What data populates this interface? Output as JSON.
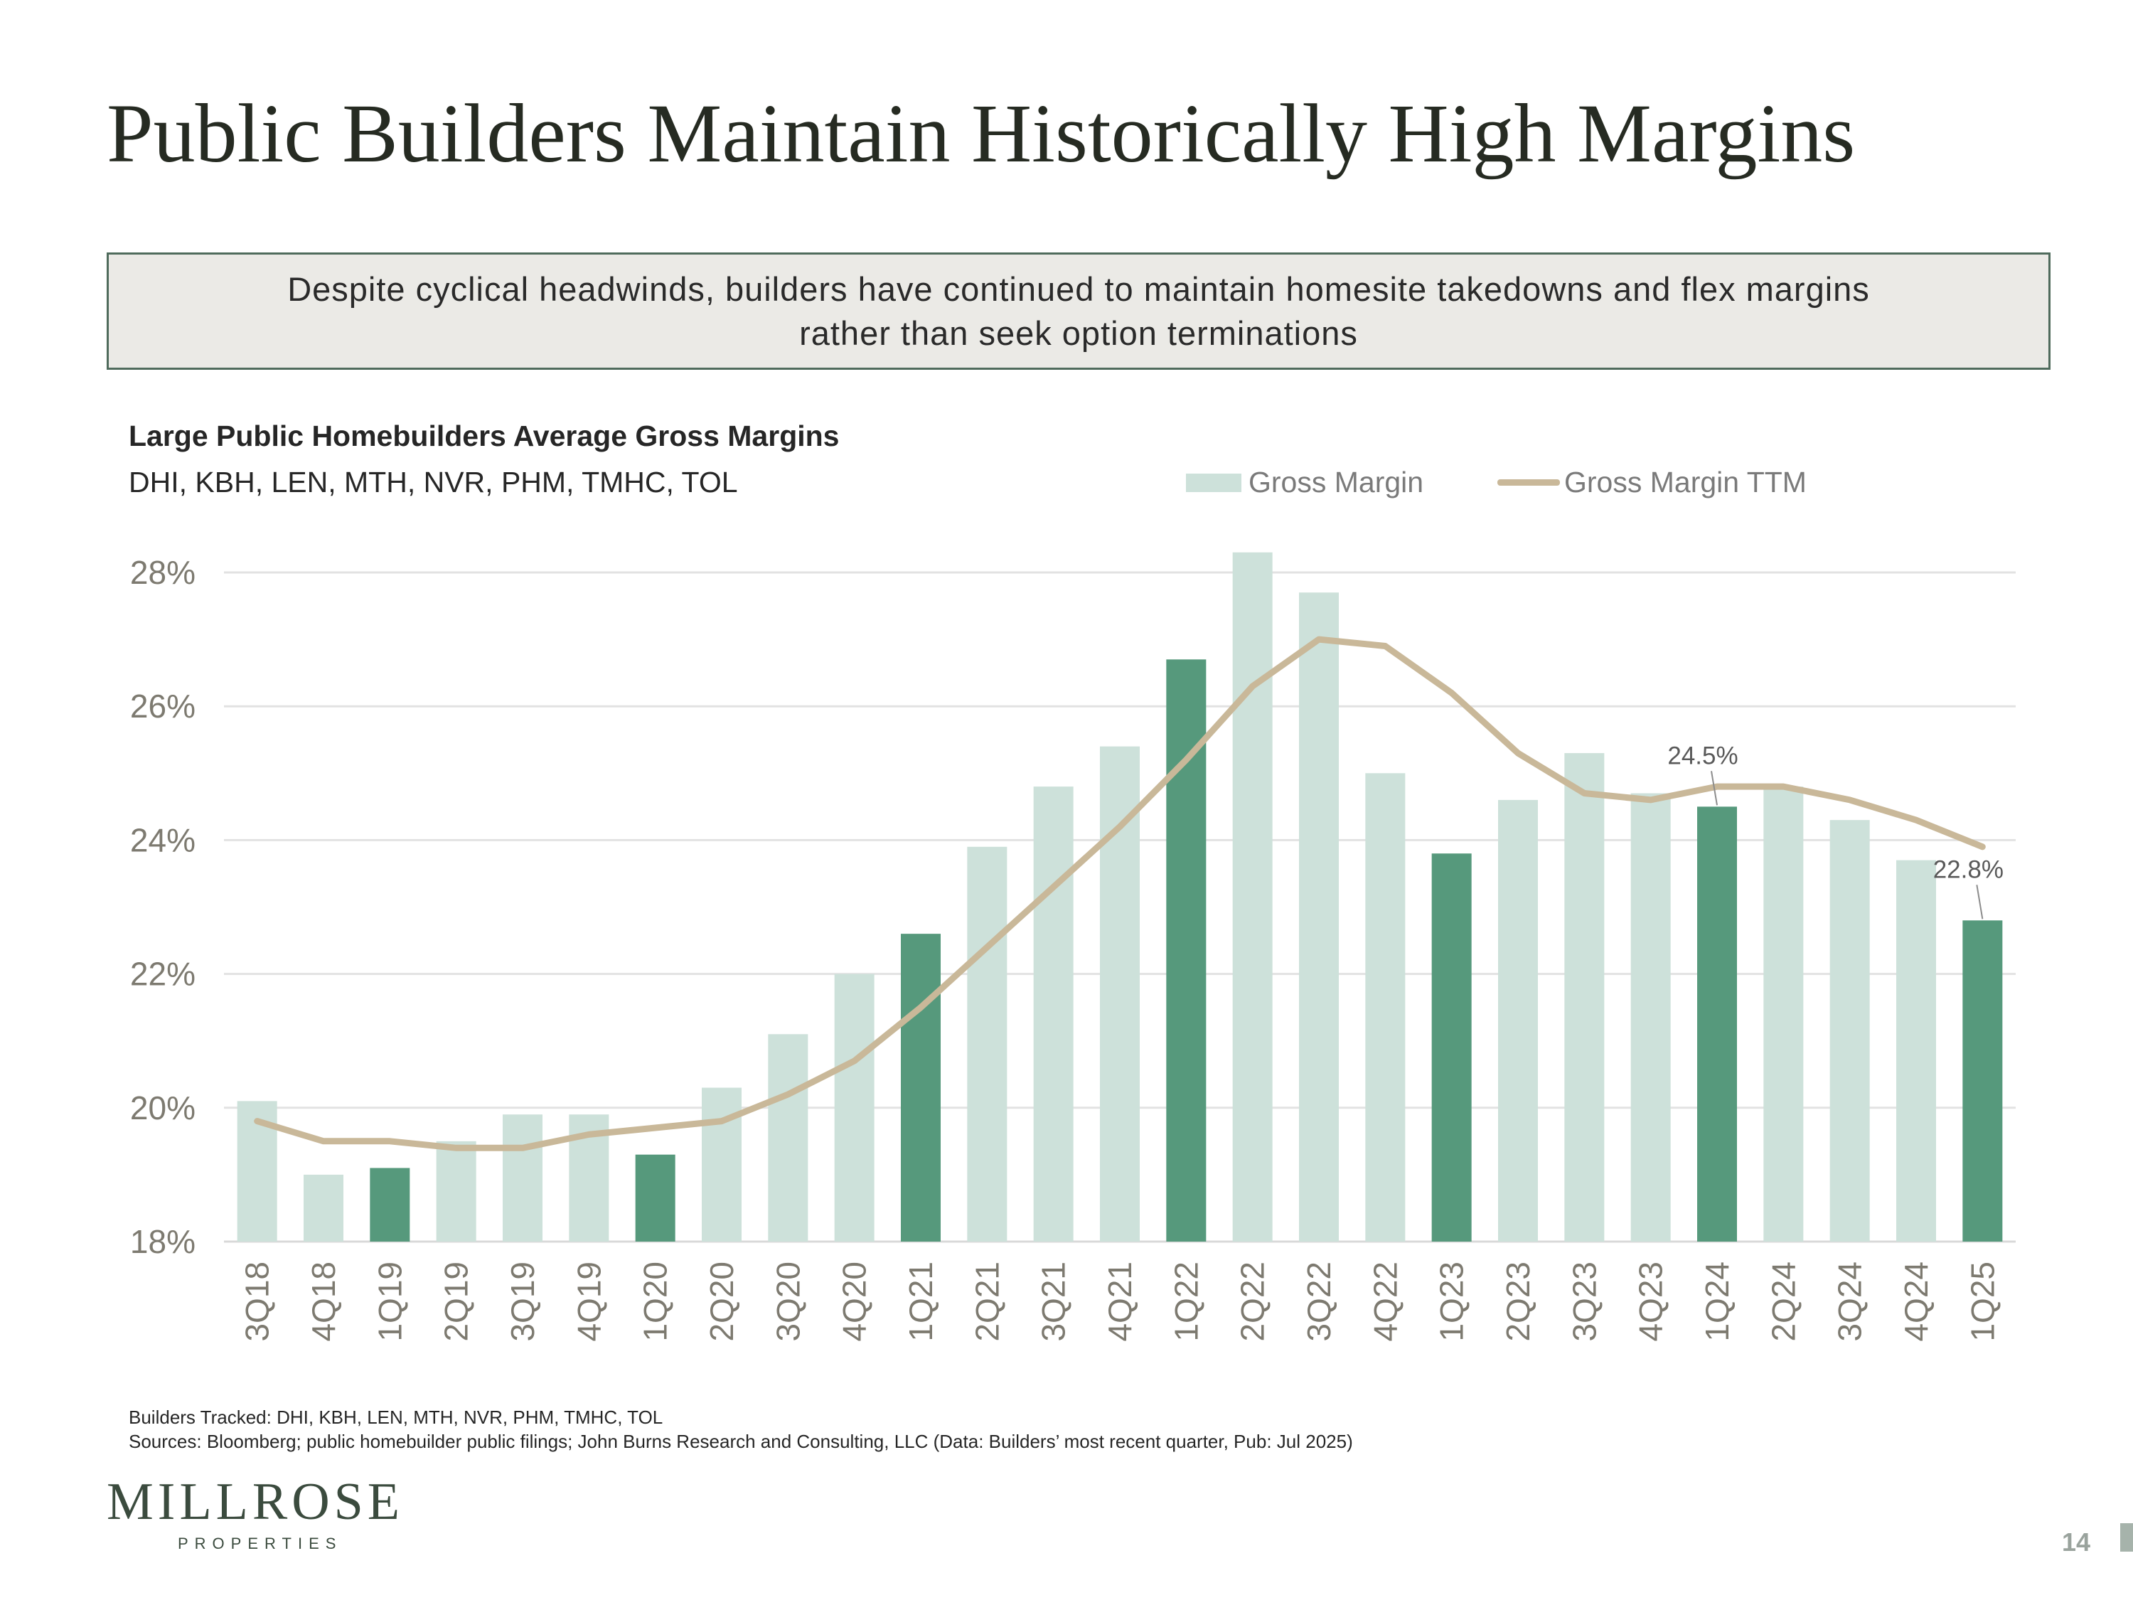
{
  "title": "Public Builders Maintain Historically High Margins",
  "callout": "Despite cyclical headwinds, builders have continued to maintain homesite takedowns and flex margins rather than seek option terminations",
  "chart_header": {
    "title": "Large Public Homebuilders Average Gross Margins",
    "subtitle": "DHI, KBH, LEN, MTH, NVR, PHM, TMHC, TOL"
  },
  "colors": {
    "bar_light": "#cde1da",
    "bar_dark": "#56997c",
    "line": "#c9b899",
    "axis_text": "#7d7a70",
    "grid": "#e2e2e2"
  },
  "chart_data": {
    "type": "bar",
    "title": "Large Public Homebuilders Average Gross Margins",
    "categories": [
      "3Q18",
      "4Q18",
      "1Q19",
      "2Q19",
      "3Q19",
      "4Q19",
      "1Q20",
      "2Q20",
      "3Q20",
      "4Q20",
      "1Q21",
      "2Q21",
      "3Q21",
      "4Q21",
      "1Q22",
      "2Q22",
      "3Q22",
      "4Q22",
      "1Q23",
      "2Q23",
      "3Q23",
      "4Q23",
      "1Q24",
      "2Q24",
      "3Q24",
      "4Q24",
      "1Q25"
    ],
    "series": [
      {
        "name": "Gross Margin",
        "type": "bar",
        "values": [
          20.1,
          19.0,
          19.1,
          19.5,
          19.9,
          19.9,
          19.3,
          20.3,
          21.1,
          22.0,
          22.6,
          23.9,
          24.8,
          25.4,
          26.7,
          28.3,
          27.7,
          25.0,
          23.8,
          24.6,
          25.3,
          24.7,
          24.5,
          24.8,
          24.3,
          23.7,
          22.8
        ],
        "highlighted": [
          false,
          false,
          true,
          false,
          false,
          false,
          true,
          false,
          false,
          false,
          true,
          false,
          false,
          false,
          true,
          false,
          false,
          false,
          true,
          false,
          false,
          false,
          true,
          false,
          false,
          false,
          true
        ]
      },
      {
        "name": "Gross Margin TTM",
        "type": "line",
        "values": [
          19.8,
          19.5,
          19.5,
          19.4,
          19.4,
          19.6,
          19.7,
          19.8,
          20.2,
          20.7,
          21.5,
          22.4,
          23.3,
          24.2,
          25.2,
          26.3,
          27.0,
          26.9,
          26.2,
          25.3,
          24.7,
          24.6,
          24.8,
          24.8,
          24.6,
          24.3,
          23.9
        ]
      }
    ],
    "yticks": [
      "18%",
      "20%",
      "22%",
      "24%",
      "26%",
      "28%"
    ],
    "ylim": [
      18,
      28
    ],
    "annotations": [
      {
        "label": "24.5%",
        "category": "1Q24"
      },
      {
        "label": "22.8%",
        "category": "1Q25"
      }
    ],
    "legend": [
      "Gross Margin",
      "Gross Margin TTM"
    ],
    "legend_position": "top-right",
    "grid": true
  },
  "footnotes": {
    "builders": "Builders Tracked: DHI, KBH, LEN, MTH, NVR, PHM, TMHC, TOL",
    "sources": "Sources: Bloomberg; public homebuilder public filings; John Burns Research and Consulting, LLC (Data: Builders’ most recent quarter, Pub: Jul 2025)"
  },
  "logo": {
    "name": "MILLROSE",
    "sub": "PROPERTIES"
  },
  "page_number": "14"
}
